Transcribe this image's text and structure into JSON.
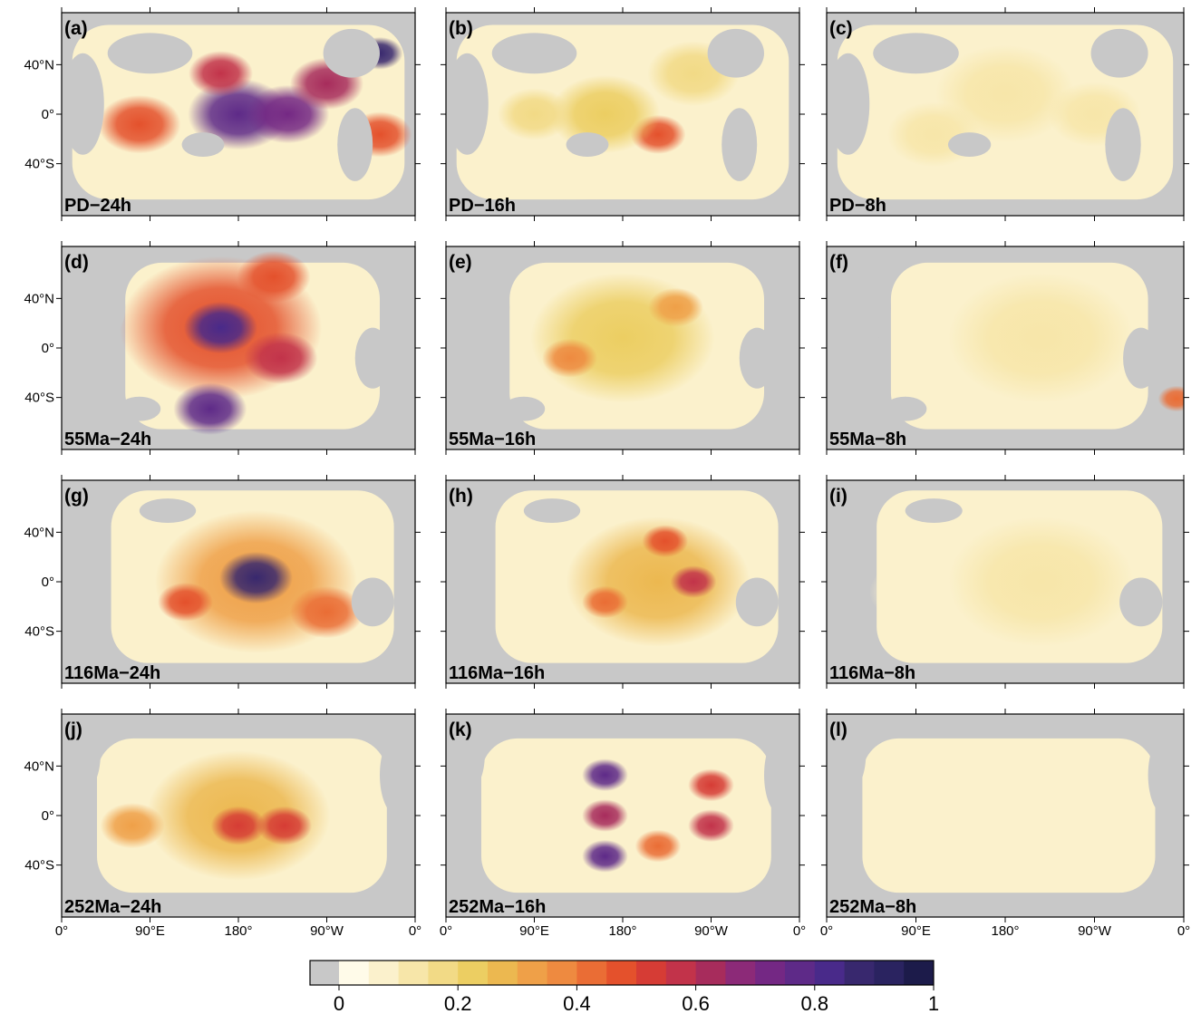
{
  "figure": {
    "lonlim": [
      0,
      360
    ],
    "latlim": [
      -82,
      82
    ],
    "lon_ticks": [
      {
        "value": 0,
        "label": "0°"
      },
      {
        "value": 90,
        "label": "90°E"
      },
      {
        "value": 180,
        "label": "180°"
      },
      {
        "value": 270,
        "label": "90°W"
      },
      {
        "value": 360,
        "label": "0°"
      }
    ],
    "lat_ticks": [
      {
        "value": 40,
        "label": "40°N"
      },
      {
        "value": 0,
        "label": "0°"
      },
      {
        "value": -40,
        "label": "40°S"
      }
    ],
    "panels": [
      {
        "label": "(a)",
        "name": "PD−24h"
      },
      {
        "label": "(b)",
        "name": "PD−16h"
      },
      {
        "label": "(c)",
        "name": "PD−8h"
      },
      {
        "label": "(d)",
        "name": "55Ma−24h"
      },
      {
        "label": "(e)",
        "name": "55Ma−16h"
      },
      {
        "label": "(f)",
        "name": "55Ma−8h"
      },
      {
        "label": "(g)",
        "name": "116Ma−24h"
      },
      {
        "label": "(h)",
        "name": "116Ma−16h"
      },
      {
        "label": "(i)",
        "name": "116Ma−8h"
      },
      {
        "label": "(j)",
        "name": "252Ma−24h"
      },
      {
        "label": "(k)",
        "name": "252Ma−16h"
      },
      {
        "label": "(l)",
        "name": "252Ma−8h"
      }
    ],
    "colorbar": {
      "lim": [
        0,
        1
      ],
      "ticks": [
        0,
        0.2,
        0.4,
        0.6,
        0.8,
        1
      ],
      "land_color": "#c8c8c8",
      "colors": [
        "#fffbe9",
        "#fbf1cc",
        "#f7e6a9",
        "#f2da86",
        "#ecce62",
        "#ecb850",
        "#efa048",
        "#ee8a40",
        "#ea6d35",
        "#e4512c",
        "#d63c35",
        "#c2334a",
        "#a72c5c",
        "#8c2a78",
        "#742884",
        "#5e2a88",
        "#492a8a",
        "#38286e",
        "#2a2360",
        "#1c1b4a"
      ]
    }
  }
}
